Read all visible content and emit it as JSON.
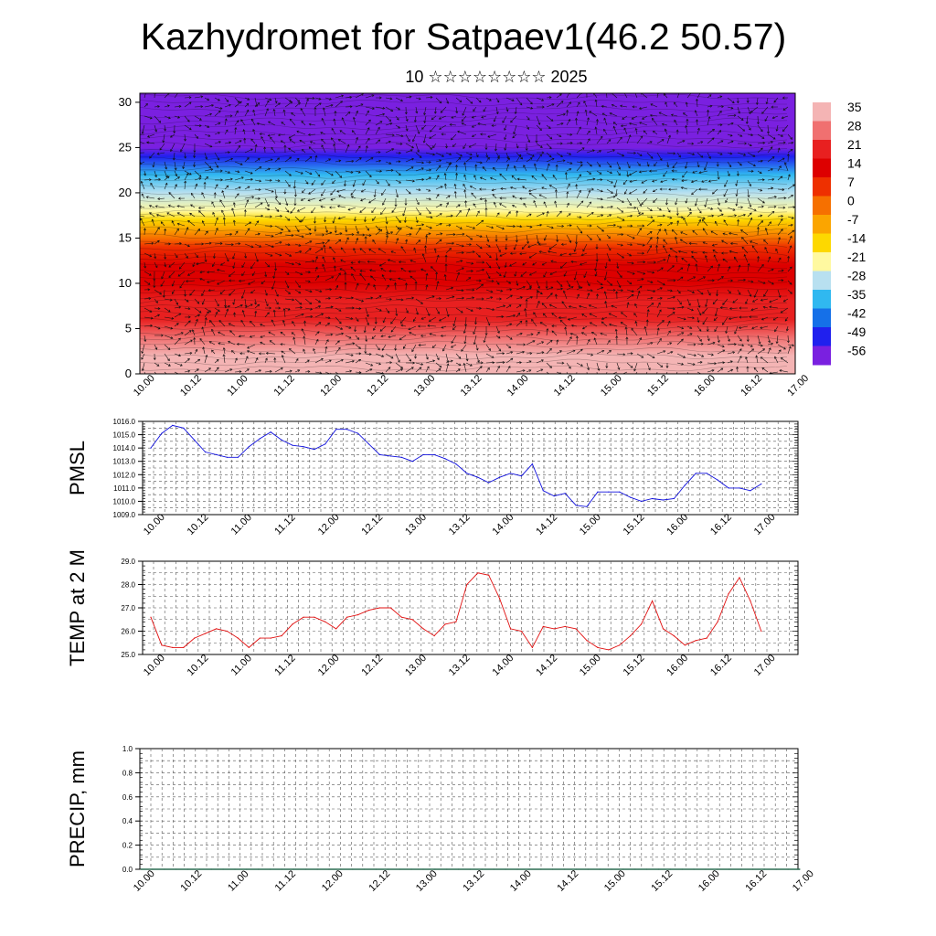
{
  "header": {
    "title": "Kazhydromet for Satpaev1(46.2 50.57)",
    "subtitle": "10 ☆☆☆☆☆☆☆☆ 2025"
  },
  "colors": {
    "pmsl_line": "#1010dd",
    "temp_line": "#e01010",
    "precip_line": "#2a6b50",
    "axis": "#000000",
    "grid": "#555555"
  },
  "chart_data": [
    {
      "type": "heatmap",
      "title": "",
      "ylabel": "",
      "ylim": [
        0,
        31
      ],
      "yticks": [
        "0",
        "5",
        "10",
        "15",
        "20",
        "25",
        "30"
      ],
      "x_tick_labels": [
        "10.00",
        "10.12",
        "11.00",
        "11.12",
        "12.00",
        "12.12",
        "13.00",
        "13.12",
        "14.00",
        "14.12",
        "15.00",
        "15.12",
        "16.00",
        "16.12",
        "17.00"
      ],
      "vectors": "wind arrows overlay",
      "colorbar": {
        "labels": [
          "35",
          "28",
          "21",
          "14",
          "7",
          "0",
          "-7",
          "-14",
          "-21",
          "-28",
          "-35",
          "-42",
          "-49",
          "-56"
        ],
        "colors": [
          "#f4b4b4",
          "#f07070",
          "#e82020",
          "#dd0000",
          "#ee3000",
          "#f67000",
          "#fba500",
          "#fdd800",
          "#fff9a0",
          "#b8e0f0",
          "#30b8f0",
          "#1570e8",
          "#2020ee",
          "#7a20e0"
        ]
      },
      "temperature_by_altitude": {
        "altitude": [
          0,
          2,
          4,
          6,
          8,
          10,
          12,
          14,
          15,
          16,
          17,
          18,
          20,
          22,
          24,
          25,
          27,
          29,
          31
        ],
        "value": [
          35,
          32,
          28,
          24,
          21,
          17,
          13,
          7,
          2,
          -5,
          -12,
          -18,
          -26,
          -36,
          -50,
          -56,
          -60,
          -64,
          -66
        ]
      }
    },
    {
      "type": "line",
      "title": "",
      "ylabel": "PMSL",
      "ylim": [
        1009.0,
        1016.0
      ],
      "yticks": [
        "1009.0",
        "1010.0",
        "1011.0",
        "1012.0",
        "1013.0",
        "1014.0",
        "1015.0",
        "1016.0"
      ],
      "x_tick_labels": [
        "10.00",
        "10.12",
        "11.00",
        "11.12",
        "12.00",
        "12.12",
        "13.00",
        "13.12",
        "14.00",
        "14.12",
        "15.00",
        "15.12",
        "16.00",
        "16.12",
        "17.00"
      ],
      "series": [
        {
          "values": [
            1014.0,
            1015.1,
            1015.7,
            1015.5,
            1014.6,
            1013.7,
            1013.5,
            1013.3,
            1013.3,
            1014.1,
            1014.7,
            1015.2,
            1014.6,
            1014.2,
            1014.1,
            1013.9,
            1014.3,
            1015.4,
            1015.4,
            1015.1,
            1014.3,
            1013.5,
            1013.4,
            1013.3,
            1013.0,
            1013.5,
            1013.5,
            1013.2,
            1012.8,
            1012.1,
            1011.8,
            1011.4,
            1011.8,
            1012.1,
            1011.9,
            1012.8,
            1010.8,
            1010.4,
            1010.6,
            1009.7,
            1009.6,
            1010.7,
            1010.7,
            1010.7,
            1010.3,
            1010.0,
            1010.2,
            1010.1,
            1010.2,
            1011.2,
            1012.1,
            1012.1,
            1011.6,
            1011.0,
            1011.0,
            1010.8,
            1011.3
          ]
        }
      ]
    },
    {
      "type": "line",
      "title": "",
      "ylabel": "TEMP at 2 M",
      "ylim": [
        25.0,
        29.0
      ],
      "yticks": [
        "25.0",
        "26.0",
        "27.0",
        "28.0",
        "29.0"
      ],
      "x_tick_labels": [
        "10.00",
        "10.12",
        "11.00",
        "11.12",
        "12.00",
        "12.12",
        "13.00",
        "13.12",
        "14.00",
        "14.12",
        "15.00",
        "15.12",
        "16.00",
        "16.12",
        "17.00"
      ],
      "series": [
        {
          "values": [
            26.6,
            25.4,
            25.3,
            25.3,
            25.7,
            25.9,
            26.1,
            26.0,
            25.7,
            25.3,
            25.7,
            25.7,
            25.8,
            26.3,
            26.6,
            26.6,
            26.4,
            26.1,
            26.6,
            26.7,
            26.9,
            27.0,
            27.0,
            26.6,
            26.5,
            26.1,
            25.8,
            26.3,
            26.4,
            28.0,
            28.5,
            28.4,
            27.4,
            26.1,
            26.0,
            25.3,
            26.2,
            26.1,
            26.2,
            26.1,
            25.6,
            25.3,
            25.2,
            25.4,
            25.8,
            26.3,
            27.3,
            26.1,
            25.8,
            25.4,
            25.6,
            25.7,
            26.4,
            27.6,
            28.3,
            27.3,
            26.0
          ]
        }
      ]
    },
    {
      "type": "line",
      "title": "",
      "ylabel": "PRECIP, mm",
      "ylim": [
        0.0,
        1.0
      ],
      "yticks": [
        "0.0",
        "0.2",
        "0.4",
        "0.6",
        "0.8",
        "1.0"
      ],
      "x_tick_labels": [
        "10.00",
        "10.12",
        "11.00",
        "11.12",
        "12.00",
        "12.12",
        "13.00",
        "13.12",
        "14.00",
        "14.12",
        "15.00",
        "15.12",
        "16.00",
        "16.12",
        "17.00"
      ],
      "series": [
        {
          "values": [
            0,
            0,
            0,
            0,
            0,
            0,
            0,
            0,
            0,
            0,
            0,
            0,
            0,
            0,
            0,
            0,
            0,
            0,
            0,
            0,
            0,
            0,
            0,
            0,
            0,
            0,
            0,
            0,
            0,
            0,
            0,
            0,
            0,
            0,
            0,
            0,
            0,
            0,
            0,
            0,
            0,
            0,
            0,
            0,
            0,
            0,
            0,
            0,
            0,
            0,
            0,
            0,
            0,
            0,
            0,
            0,
            0
          ]
        }
      ]
    }
  ]
}
